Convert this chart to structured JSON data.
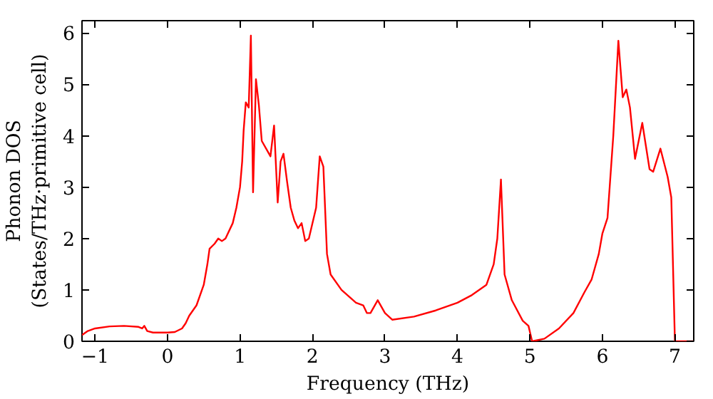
{
  "chart_data": {
    "type": "line",
    "xlabel": "Frequency (THz)",
    "ylabel": "Phonon DOS\n(States/THz·primitive cell)",
    "xlim": [
      -1.18,
      7.26
    ],
    "ylim": [
      0,
      6.24
    ],
    "xticks": [
      -1,
      0,
      1,
      2,
      3,
      4,
      5,
      6,
      7
    ],
    "yticks": [
      0,
      1,
      2,
      3,
      4,
      5,
      6
    ],
    "grid": false,
    "series": [
      {
        "color": "#ff0000",
        "x": [
          -1.18,
          -1.1,
          -1.0,
          -0.8,
          -0.6,
          -0.4,
          -0.35,
          -0.32,
          -0.28,
          -0.2,
          0,
          0.1,
          0.2,
          0.25,
          0.3,
          0.4,
          0.5,
          0.55,
          0.58,
          0.65,
          0.7,
          0.75,
          0.8,
          0.9,
          0.95,
          1.0,
          1.03,
          1.05,
          1.08,
          1.12,
          1.15,
          1.18,
          1.22,
          1.26,
          1.3,
          1.38,
          1.42,
          1.47,
          1.52,
          1.56,
          1.6,
          1.65,
          1.7,
          1.75,
          1.8,
          1.85,
          1.9,
          1.95,
          2.05,
          2.1,
          2.15,
          2.2,
          2.25,
          2.4,
          2.6,
          2.7,
          2.75,
          2.8,
          2.9,
          3.0,
          3.1,
          3.4,
          3.7,
          4.0,
          4.2,
          4.4,
          4.5,
          4.55,
          4.6,
          4.65,
          4.75,
          4.9,
          4.98,
          5.03,
          5.2,
          5.4,
          5.6,
          5.75,
          5.85,
          5.95,
          6.0,
          6.07,
          6.15,
          6.22,
          6.28,
          6.33,
          6.38,
          6.45,
          6.55,
          6.65,
          6.7,
          6.8,
          6.9,
          6.95,
          7.0,
          7.26
        ],
        "values": [
          0.12,
          0.2,
          0.25,
          0.29,
          0.3,
          0.28,
          0.25,
          0.3,
          0.2,
          0.17,
          0.17,
          0.18,
          0.25,
          0.35,
          0.5,
          0.7,
          1.1,
          1.5,
          1.8,
          1.9,
          2.0,
          1.95,
          2.0,
          2.3,
          2.6,
          3.0,
          3.5,
          4.1,
          4.65,
          4.55,
          5.95,
          2.9,
          5.1,
          4.6,
          3.9,
          3.7,
          3.6,
          4.2,
          2.7,
          3.5,
          3.65,
          3.1,
          2.6,
          2.35,
          2.2,
          2.3,
          1.95,
          2.0,
          2.6,
          3.6,
          3.4,
          1.7,
          1.3,
          1.0,
          0.75,
          0.7,
          0.55,
          0.55,
          0.8,
          0.55,
          0.42,
          0.48,
          0.6,
          0.75,
          0.9,
          1.1,
          1.5,
          2.0,
          3.15,
          1.3,
          0.8,
          0.4,
          0.3,
          0.0,
          0.05,
          0.25,
          0.55,
          0.95,
          1.2,
          1.7,
          2.1,
          2.4,
          4.0,
          5.85,
          4.75,
          4.9,
          4.55,
          3.55,
          4.25,
          3.35,
          3.3,
          3.75,
          3.2,
          2.8,
          0.0,
          0.0
        ]
      }
    ]
  }
}
